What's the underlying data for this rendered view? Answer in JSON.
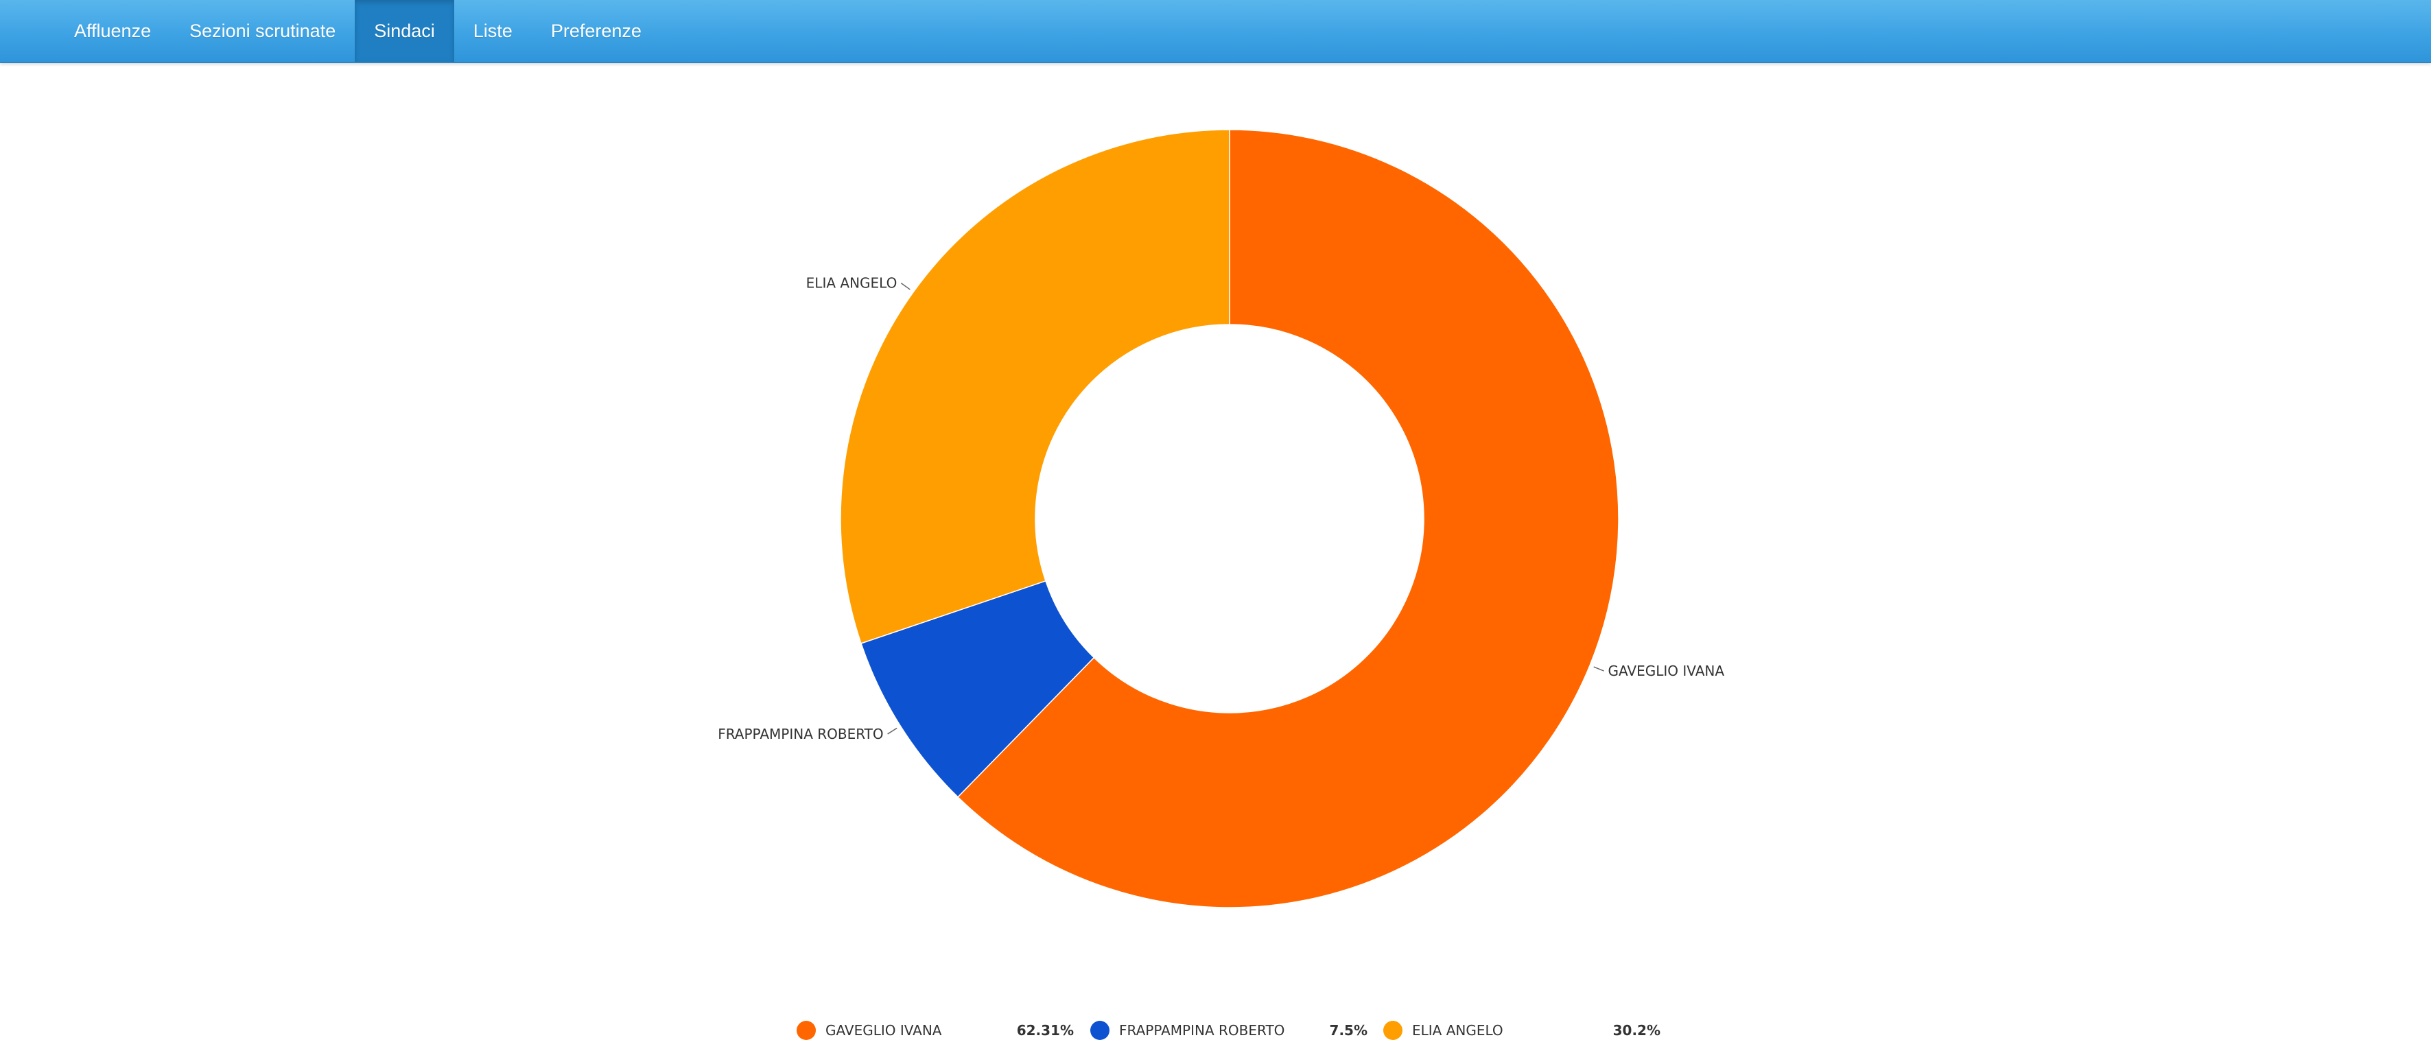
{
  "nav": {
    "items": [
      {
        "label": "Affluenze",
        "active": false
      },
      {
        "label": "Sezioni scrutinate",
        "active": false
      },
      {
        "label": "Sindaci",
        "active": true
      },
      {
        "label": "Liste",
        "active": false
      },
      {
        "label": "Preferenze",
        "active": false
      }
    ]
  },
  "chart_data": {
    "type": "pie",
    "subtype": "donut",
    "categories": [
      "GAVEGLIO IVANA",
      "FRAPPAMPINA ROBERTO",
      "ELIA ANGELO"
    ],
    "values": [
      62.31,
      7.5,
      30.2
    ],
    "value_labels": [
      "62.31%",
      "7.5%",
      "30.2%"
    ],
    "colors": [
      "#ff6600",
      "#0d52d1",
      "#ff9e01"
    ],
    "legend_placement": "bottom"
  }
}
